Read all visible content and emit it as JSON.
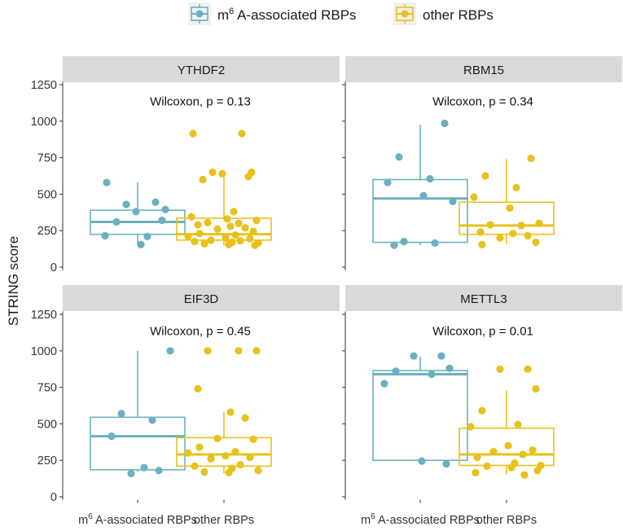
{
  "chart_data": {
    "type": "boxplot",
    "ylabel": "STRING score",
    "xlabel": "",
    "ylim": [
      0,
      1250
    ],
    "yticks": [
      0,
      250,
      500,
      750,
      1000,
      1250
    ],
    "groups": [
      {
        "key": "m6a",
        "label_base": "m",
        "label_sup": "6",
        "label_rest": " A-associated RBPs",
        "color": "#6bb0c0"
      },
      {
        "key": "other",
        "label": "other RBPs",
        "color": "#e8c11b"
      }
    ],
    "legend": {
      "position": "top",
      "items": [
        "m6 A-associated RBPs",
        "other RBPs"
      ]
    },
    "panels": [
      {
        "title": "YTHDF2",
        "stat": "Wilcoxon, p = 0.13",
        "m6a": {
          "min": 155,
          "q1": 225,
          "median": 310,
          "q3": 390,
          "max": 580,
          "points": [
            580,
            445,
            430,
            395,
            380,
            320,
            310,
            210,
            215,
            155
          ]
        },
        "other": {
          "min": 150,
          "q1": 185,
          "median": 225,
          "q3": 335,
          "max": 640,
          "points": [
            915,
            915,
            650,
            650,
            640,
            620,
            600,
            380,
            345,
            330,
            320,
            305,
            300,
            290,
            280,
            270,
            260,
            245,
            230,
            220,
            210,
            200,
            195,
            185,
            180,
            175,
            170,
            165,
            160,
            155,
            150
          ]
        }
      },
      {
        "title": "RBM15",
        "stat": "Wilcoxon, p = 0.34",
        "m6a": {
          "min": 150,
          "q1": 170,
          "median": 470,
          "q3": 600,
          "max": 975,
          "points": [
            985,
            755,
            605,
            580,
            490,
            450,
            175,
            165,
            150
          ]
        },
        "other": {
          "min": 155,
          "q1": 225,
          "median": 285,
          "q3": 445,
          "max": 740,
          "points": [
            745,
            625,
            545,
            480,
            405,
            300,
            290,
            285,
            240,
            230,
            215,
            200,
            170,
            155
          ]
        }
      },
      {
        "title": "EIF3D",
        "stat": "Wilcoxon, p = 0.45",
        "m6a": {
          "min": 170,
          "q1": 185,
          "median": 415,
          "q3": 545,
          "max": 1000,
          "points": [
            1000,
            570,
            525,
            415,
            200,
            180,
            160
          ]
        },
        "other": {
          "min": 160,
          "q1": 210,
          "median": 290,
          "q3": 405,
          "max": 580,
          "points": [
            1000,
            1000,
            1000,
            740,
            580,
            540,
            400,
            395,
            340,
            310,
            300,
            280,
            270,
            260,
            220,
            210,
            195,
            180,
            170,
            165
          ]
        }
      },
      {
        "title": "METTL3",
        "stat": "Wilcoxon, p = 0.01",
        "m6a": {
          "min": 225,
          "q1": 250,
          "median": 840,
          "q3": 865,
          "max": 960,
          "points": [
            965,
            965,
            880,
            860,
            840,
            775,
            245,
            225
          ]
        },
        "other": {
          "min": 150,
          "q1": 215,
          "median": 290,
          "q3": 470,
          "max": 730,
          "points": [
            875,
            875,
            740,
            590,
            495,
            480,
            350,
            320,
            310,
            290,
            270,
            230,
            215,
            210,
            200,
            180,
            165,
            150
          ]
        }
      }
    ]
  }
}
